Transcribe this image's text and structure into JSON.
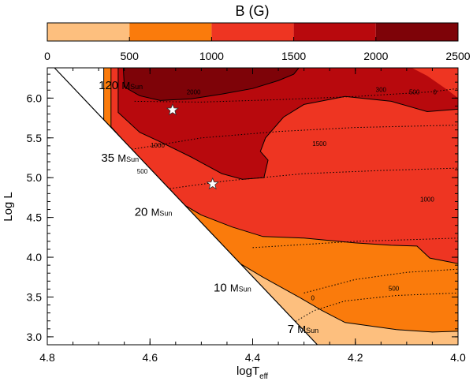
{
  "chart_data": {
    "type": "heatmap",
    "colorbar": {
      "title": "B (G)",
      "ticks": [
        0,
        500,
        1000,
        1500,
        2000,
        2500
      ],
      "range": [
        0,
        2500
      ],
      "bins": [
        {
          "from": 0,
          "to": 500,
          "color": "#fdbf7e"
        },
        {
          "from": 500,
          "to": 1000,
          "color": "#fa7b0c"
        },
        {
          "from": 1000,
          "to": 1500,
          "color": "#ee3522"
        },
        {
          "from": 1500,
          "to": 2000,
          "color": "#b8090d"
        },
        {
          "from": 2000,
          "to": 2500,
          "color": "#7e0308"
        }
      ]
    },
    "xlabel": "logT",
    "xlabel_sub": "eff",
    "ylabel": "Log L",
    "xlim": [
      4.8,
      4.0
    ],
    "ylim": [
      2.9,
      6.38
    ],
    "x_ticks": [
      "4.8",
      "4.6",
      "4.4",
      "4.2",
      "4.0"
    ],
    "y_ticks": [
      "3.0",
      "3.5",
      "4.0",
      "4.5",
      "5.0",
      "5.5",
      "6.0"
    ],
    "mass_labels": [
      {
        "text": "120",
        "unit": "M",
        "unit_sub": "Sun",
        "x": 4.7,
        "y": 6.11
      },
      {
        "text": "35",
        "unit": "M",
        "unit_sub": "Sun",
        "x": 4.695,
        "y": 5.2
      },
      {
        "text": "20",
        "unit": "M",
        "unit_sub": "Sun",
        "x": 4.63,
        "y": 4.52
      },
      {
        "text": "10",
        "unit": "M",
        "unit_sub": "Sun",
        "x": 4.476,
        "y": 3.57
      },
      {
        "text": "7",
        "unit": "M",
        "unit_sub": "Sun",
        "x": 4.332,
        "y": 3.05
      }
    ],
    "stars": [
      {
        "x": 4.556,
        "y": 5.85
      },
      {
        "x": 4.478,
        "y": 4.92
      }
    ],
    "contour_labels": [
      {
        "text": "2000",
        "x": 4.515,
        "y": 6.05
      },
      {
        "text": "1000",
        "x": 4.585,
        "y": 5.38
      },
      {
        "text": "500",
        "x": 4.615,
        "y": 5.05
      },
      {
        "text": "1500",
        "x": 4.27,
        "y": 5.4
      },
      {
        "text": "1000",
        "x": 4.06,
        "y": 4.7
      },
      {
        "text": "500",
        "x": 4.125,
        "y": 3.58
      },
      {
        "text": "0",
        "x": 4.283,
        "y": 3.46
      },
      {
        "text": "300",
        "x": 4.15,
        "y": 6.08
      },
      {
        "text": "500",
        "x": 4.085,
        "y": 6.05
      },
      {
        "text": "0",
        "x": 4.045,
        "y": 6.05
      }
    ],
    "zams_line": [
      [
        4.786,
        6.38
      ],
      [
        4.274,
        2.9
      ]
    ],
    "regions": [
      {
        "level": "0-500",
        "color": "#fdbf7e",
        "points": [
          [
            4.683,
            5.58
          ],
          [
            4.66,
            5.35
          ],
          [
            4.62,
            5.05
          ],
          [
            4.56,
            4.58
          ],
          [
            4.47,
            3.96
          ],
          [
            4.4,
            3.48
          ],
          [
            4.33,
            3.01
          ],
          [
            4.3,
            2.9
          ],
          [
            4.0,
            2.9
          ],
          [
            4.0,
            6.38
          ],
          [
            4.683,
            6.38
          ]
        ]
      },
      {
        "level": "500-1000",
        "color": "#fa7b0c",
        "points": [
          [
            4.69,
            6.38
          ],
          [
            4.69,
            5.6
          ],
          [
            4.655,
            5.32
          ],
          [
            4.615,
            4.95
          ],
          [
            4.58,
            4.62
          ],
          [
            4.5,
            4.22
          ],
          [
            4.44,
            3.98
          ],
          [
            4.38,
            3.75
          ],
          [
            4.31,
            3.5
          ],
          [
            4.265,
            3.33
          ],
          [
            4.22,
            3.18
          ],
          [
            4.12,
            3.09
          ],
          [
            4.05,
            3.06
          ],
          [
            4.0,
            3.07
          ],
          [
            4.0,
            6.38
          ]
        ]
      },
      {
        "level": "1000-1500",
        "color": "#ee3522",
        "points": [
          [
            4.676,
            6.38
          ],
          [
            4.676,
            5.64
          ],
          [
            4.64,
            5.38
          ],
          [
            4.6,
            5.03
          ],
          [
            4.55,
            4.72
          ],
          [
            4.5,
            4.53
          ],
          [
            4.44,
            4.38
          ],
          [
            4.38,
            4.26
          ],
          [
            4.3,
            4.24
          ],
          [
            4.2,
            4.18
          ],
          [
            4.13,
            4.15
          ],
          [
            4.08,
            4.14
          ],
          [
            4.055,
            3.99
          ],
          [
            4.0,
            3.92
          ],
          [
            4.0,
            6.38
          ]
        ]
      },
      {
        "level": "1500-2000",
        "color": "#b8090d",
        "points": [
          [
            4.662,
            6.38
          ],
          [
            4.662,
            5.82
          ],
          [
            4.62,
            5.57
          ],
          [
            4.58,
            5.45
          ],
          [
            4.52,
            5.26
          ],
          [
            4.46,
            5.05
          ],
          [
            4.42,
            4.98
          ],
          [
            4.378,
            5.0
          ],
          [
            4.37,
            5.22
          ],
          [
            4.385,
            5.33
          ],
          [
            4.375,
            5.5
          ],
          [
            4.34,
            5.76
          ],
          [
            4.3,
            5.92
          ],
          [
            4.22,
            6.02
          ],
          [
            4.13,
            5.96
          ],
          [
            4.06,
            5.83
          ],
          [
            4.0,
            5.86
          ],
          [
            4.0,
            6.0
          ],
          [
            4.02,
            6.1
          ],
          [
            4.06,
            6.28
          ],
          [
            4.09,
            6.38
          ]
        ]
      },
      {
        "level": "2000-2500",
        "color": "#7e0308",
        "points": [
          [
            4.652,
            6.38
          ],
          [
            4.65,
            6.14
          ],
          [
            4.62,
            6.03
          ],
          [
            4.58,
            5.97
          ],
          [
            4.52,
            5.99
          ],
          [
            4.46,
            6.05
          ],
          [
            4.4,
            6.12
          ],
          [
            4.35,
            6.22
          ],
          [
            4.32,
            6.3
          ],
          [
            4.31,
            6.38
          ]
        ]
      }
    ],
    "solid_contours": [
      [
        [
          4.69,
          6.38
        ],
        [
          4.69,
          5.6
        ],
        [
          4.655,
          5.32
        ],
        [
          4.615,
          4.95
        ],
        [
          4.58,
          4.62
        ],
        [
          4.5,
          4.22
        ],
        [
          4.44,
          3.98
        ],
        [
          4.38,
          3.75
        ],
        [
          4.31,
          3.5
        ],
        [
          4.265,
          3.33
        ],
        [
          4.22,
          3.18
        ],
        [
          4.12,
          3.09
        ],
        [
          4.05,
          3.06
        ],
        [
          4.0,
          3.07
        ]
      ],
      [
        [
          4.676,
          6.38
        ],
        [
          4.676,
          5.64
        ],
        [
          4.64,
          5.38
        ],
        [
          4.6,
          5.03
        ],
        [
          4.55,
          4.72
        ],
        [
          4.5,
          4.53
        ],
        [
          4.44,
          4.38
        ],
        [
          4.38,
          4.26
        ],
        [
          4.3,
          4.24
        ],
        [
          4.2,
          4.18
        ],
        [
          4.13,
          4.15
        ],
        [
          4.08,
          4.14
        ],
        [
          4.055,
          3.99
        ],
        [
          4.0,
          3.92
        ]
      ],
      [
        [
          4.662,
          6.38
        ],
        [
          4.662,
          5.82
        ],
        [
          4.62,
          5.57
        ],
        [
          4.58,
          5.45
        ],
        [
          4.52,
          5.26
        ],
        [
          4.46,
          5.05
        ],
        [
          4.42,
          4.98
        ],
        [
          4.378,
          5.0
        ],
        [
          4.37,
          5.22
        ],
        [
          4.385,
          5.33
        ],
        [
          4.375,
          5.5
        ],
        [
          4.34,
          5.76
        ],
        [
          4.3,
          5.92
        ],
        [
          4.22,
          6.02
        ],
        [
          4.13,
          5.96
        ],
        [
          4.06,
          5.83
        ],
        [
          4.0,
          5.86
        ]
      ],
      [
        [
          4.652,
          6.38
        ],
        [
          4.65,
          6.14
        ],
        [
          4.62,
          6.03
        ],
        [
          4.58,
          5.97
        ],
        [
          4.52,
          5.99
        ],
        [
          4.46,
          6.05
        ],
        [
          4.4,
          6.12
        ],
        [
          4.35,
          6.22
        ],
        [
          4.32,
          6.3
        ],
        [
          4.31,
          6.38
        ]
      ],
      [
        [
          4.683,
          5.58
        ],
        [
          4.66,
          5.35
        ],
        [
          4.62,
          5.05
        ],
        [
          4.56,
          4.58
        ],
        [
          4.47,
          3.96
        ],
        [
          4.4,
          3.48
        ],
        [
          4.33,
          3.01
        ],
        [
          4.3,
          2.9
        ]
      ]
    ],
    "dotted_tracks": [
      [
        [
          4.63,
          5.96
        ],
        [
          4.5,
          5.95
        ],
        [
          4.35,
          5.98
        ],
        [
          4.2,
          6.02
        ],
        [
          4.05,
          6.08
        ],
        [
          4.0,
          6.12
        ]
      ],
      [
        [
          4.66,
          5.33
        ],
        [
          4.5,
          5.5
        ],
        [
          4.35,
          5.58
        ],
        [
          4.2,
          5.63
        ],
        [
          4.0,
          5.66
        ]
      ],
      [
        [
          4.61,
          4.82
        ],
        [
          4.45,
          4.96
        ],
        [
          4.3,
          5.05
        ],
        [
          4.15,
          5.09
        ],
        [
          4.0,
          5.12
        ]
      ],
      [
        [
          4.4,
          4.12
        ],
        [
          4.3,
          4.16
        ],
        [
          4.2,
          4.2
        ],
        [
          4.1,
          4.22
        ],
        [
          4.0,
          4.24
        ]
      ],
      [
        [
          4.3,
          3.55
        ],
        [
          4.2,
          3.72
        ],
        [
          4.1,
          3.81
        ],
        [
          4.0,
          3.85
        ]
      ],
      [
        [
          4.35,
          3.02
        ],
        [
          4.32,
          3.18
        ],
        [
          4.28,
          3.33
        ],
        [
          4.22,
          3.45
        ],
        [
          4.12,
          3.52
        ],
        [
          4.0,
          3.55
        ]
      ]
    ]
  }
}
